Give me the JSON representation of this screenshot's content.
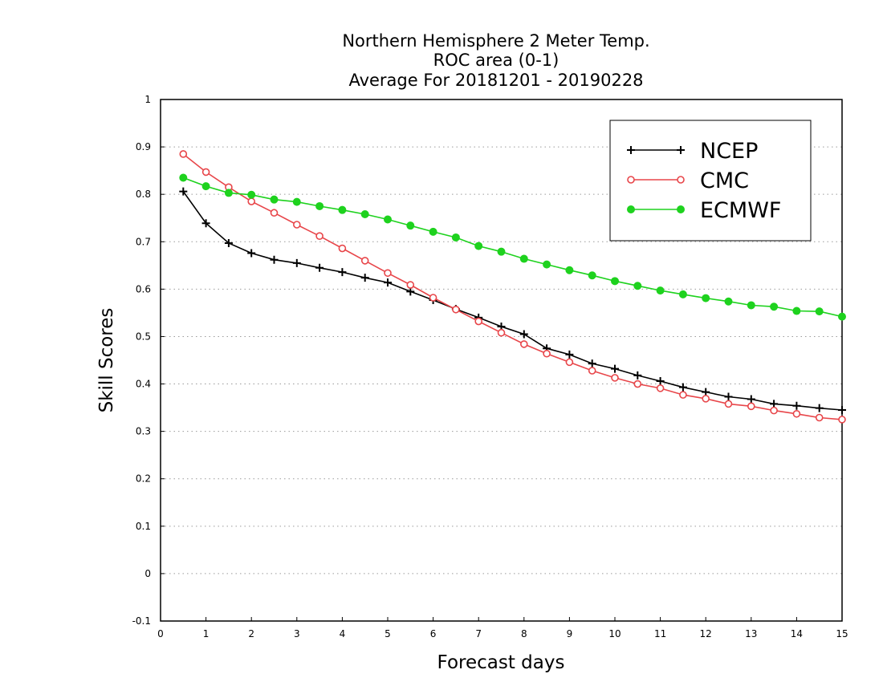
{
  "chart_data": {
    "type": "line",
    "title": [
      "Northern Hemisphere 2 Meter Temp.",
      "ROC area (0-1)",
      "Average For 20181201 - 20190228"
    ],
    "xlabel": "Forecast days",
    "ylabel": "Skill Scores",
    "xlim": [
      0,
      15
    ],
    "ylim": [
      -0.1,
      1
    ],
    "xticks": [
      0,
      1,
      2,
      3,
      4,
      5,
      6,
      7,
      8,
      9,
      10,
      11,
      12,
      13,
      14,
      15
    ],
    "yticks": [
      -0.1,
      0,
      0.1,
      0.2,
      0.3,
      0.4,
      0.5,
      0.6,
      0.7,
      0.8,
      0.9,
      1
    ],
    "ytick_labels": [
      "-0.1",
      "0",
      "0.1",
      "0.2",
      "0.3",
      "0.4",
      "0.5",
      "0.6",
      "0.7",
      "0.8",
      "0.9",
      "1"
    ],
    "grid": "horizontal dotted",
    "legend_position": "top-right",
    "x": [
      0.5,
      1,
      1.5,
      2,
      2.5,
      3,
      3.5,
      4,
      4.5,
      5,
      5.5,
      6,
      6.5,
      7,
      7.5,
      8,
      8.5,
      9,
      9.5,
      10,
      10.5,
      11,
      11.5,
      12,
      12.5,
      13,
      13.5,
      14,
      14.5,
      15
    ],
    "series": [
      {
        "name": "NCEP",
        "color": "#000000",
        "marker": "plus",
        "values": [
          0.806,
          0.739,
          0.697,
          0.676,
          0.662,
          0.655,
          0.645,
          0.636,
          0.624,
          0.614,
          0.595,
          0.577,
          0.558,
          0.54,
          0.521,
          0.505,
          0.475,
          0.462,
          0.443,
          0.432,
          0.418,
          0.406,
          0.393,
          0.383,
          0.373,
          0.368,
          0.358,
          0.354,
          0.349,
          0.345
        ]
      },
      {
        "name": "CMC",
        "color": "#e8464a",
        "marker": "open-circle",
        "values": [
          0.885,
          0.847,
          0.815,
          0.785,
          0.761,
          0.736,
          0.712,
          0.686,
          0.66,
          0.634,
          0.609,
          0.582,
          0.557,
          0.532,
          0.508,
          0.484,
          0.464,
          0.446,
          0.428,
          0.413,
          0.4,
          0.391,
          0.377,
          0.369,
          0.358,
          0.353,
          0.344,
          0.337,
          0.329,
          0.325
        ]
      },
      {
        "name": "ECMWF",
        "color": "#1ed21e",
        "marker": "filled-circle",
        "values": [
          0.835,
          0.817,
          0.803,
          0.799,
          0.789,
          0.784,
          0.775,
          0.767,
          0.758,
          0.747,
          0.734,
          0.721,
          0.709,
          0.691,
          0.679,
          0.664,
          0.652,
          0.64,
          0.629,
          0.617,
          0.607,
          0.597,
          0.589,
          0.581,
          0.574,
          0.566,
          0.563,
          0.554,
          0.553,
          0.542
        ]
      }
    ]
  }
}
